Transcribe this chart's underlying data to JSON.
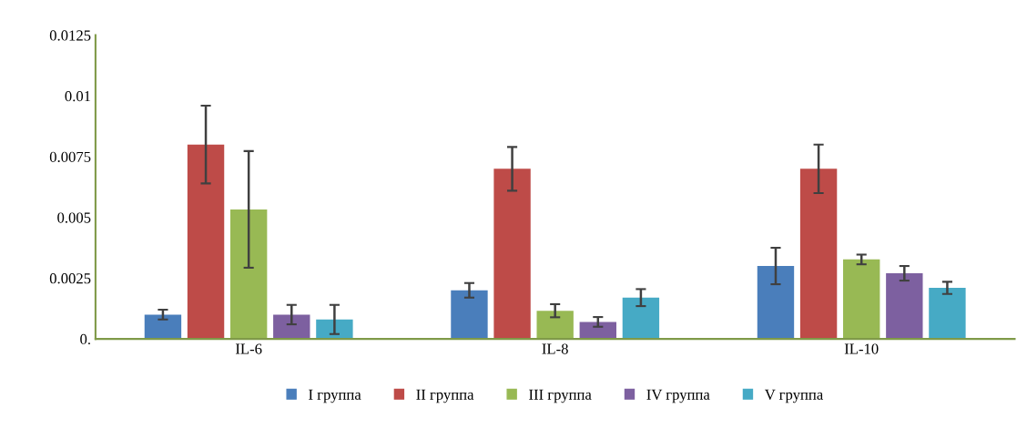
{
  "chart_data": {
    "type": "bar",
    "categories": [
      "IL-6",
      "IL-8",
      "IL-10"
    ],
    "series": [
      {
        "name": "I группа",
        "color": "#4a7ebb",
        "values": [
          0.001,
          0.002,
          0.003
        ],
        "errors": [
          0.0002,
          0.0003,
          0.00075
        ]
      },
      {
        "name": "II группа",
        "color": "#be4b48",
        "values": [
          0.008,
          0.007,
          0.007
        ],
        "errors": [
          0.0016,
          0.0009,
          0.001
        ]
      },
      {
        "name": "III группа",
        "color": "#98b954",
        "values": [
          0.00533,
          0.00116,
          0.00327
        ],
        "errors": [
          0.0024,
          0.00027,
          0.0002
        ]
      },
      {
        "name": "IV группа",
        "color": "#7d60a0",
        "values": [
          0.001,
          0.0007,
          0.0027
        ],
        "errors": [
          0.0004,
          0.0002,
          0.0003
        ]
      },
      {
        "name": "V группа",
        "color": "#46aac5",
        "values": [
          0.0008,
          0.0017,
          0.0021
        ],
        "errors": [
          0.0006,
          0.00035,
          0.00025
        ]
      }
    ],
    "ylim": [
      0,
      0.0125
    ],
    "yticks": [
      {
        "value": 0,
        "label": "0."
      },
      0.0025,
      0.005,
      0.0075,
      0.01,
      0.0125
    ],
    "grid": false,
    "legend": "bottom"
  }
}
